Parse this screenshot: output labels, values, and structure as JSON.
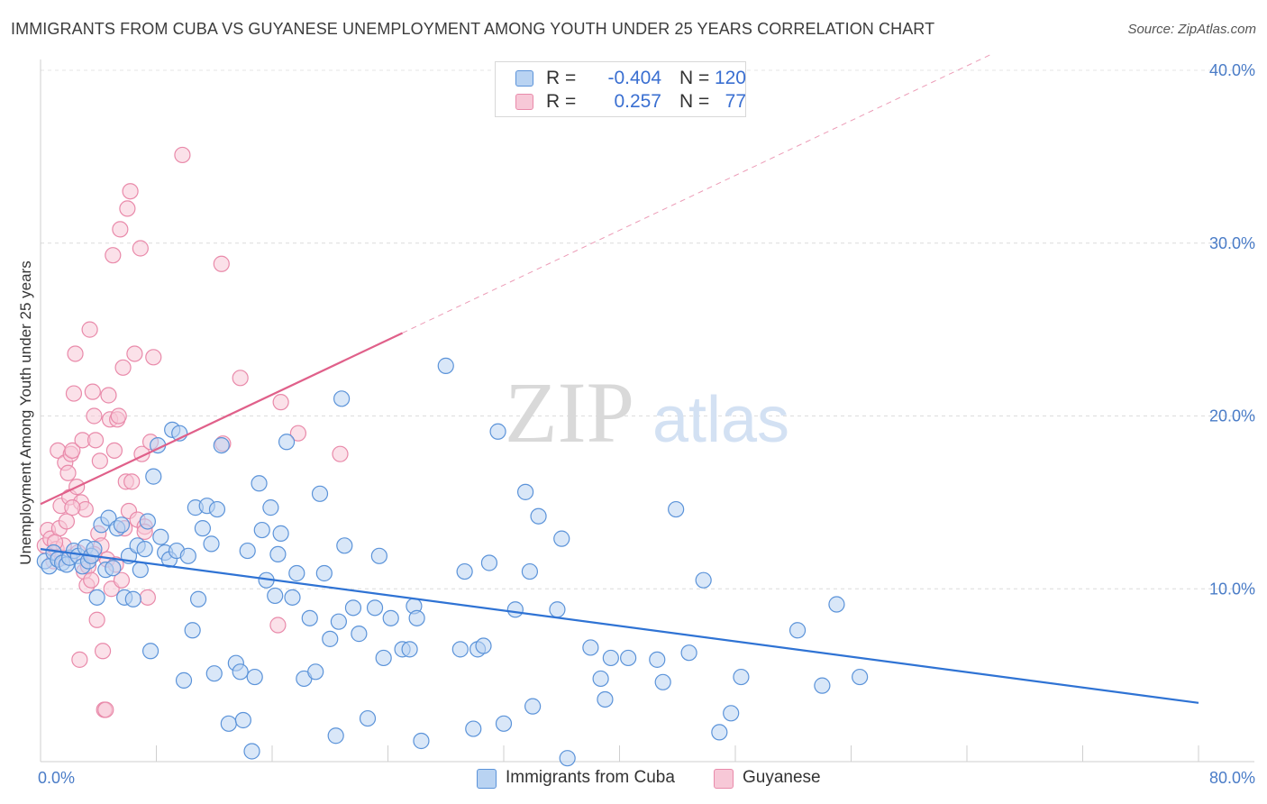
{
  "title": "IMMIGRANTS FROM CUBA VS GUYANESE UNEMPLOYMENT AMONG YOUTH UNDER 25 YEARS CORRELATION CHART",
  "source": "Source: ZipAtlas.com",
  "watermark": {
    "zip": "ZIP",
    "atlas": "atlas"
  },
  "colors": {
    "blue": "#5b93d9",
    "blue_fill": "#b9d3f2",
    "blue_line": "#2f73d4",
    "pink": "#e98aaa",
    "pink_fill": "#f7c8d7",
    "pink_line": "#e0608a",
    "tick": "#4a7cc7"
  },
  "legend": {
    "rows": [
      {
        "r_label": "R =",
        "r_value": "-0.404",
        "n_label": "N =",
        "n_value": "120"
      },
      {
        "r_label": "R =",
        "r_value": "0.257",
        "n_label": "N =",
        "n_value": "77"
      }
    ],
    "bottom": [
      "Immigrants from Cuba",
      "Guyanese"
    ]
  },
  "chart_data": {
    "type": "scatter",
    "title": "IMMIGRANTS FROM CUBA VS GUYANESE UNEMPLOYMENT AMONG YOUTH UNDER 25 YEARS CORRELATION CHART",
    "xlabel": "",
    "ylabel": "Unemployment Among Youth under 25 years",
    "xlim": [
      0,
      80
    ],
    "ylim": [
      0,
      40
    ],
    "x_tick_labels": [
      "0.0%",
      "80.0%"
    ],
    "y_ticks": [
      10,
      20,
      30,
      40
    ],
    "y_tick_labels": [
      "10.0%",
      "20.0%",
      "30.0%",
      "40.0%"
    ],
    "grid": true,
    "series": [
      {
        "name": "Immigrants from Cuba",
        "r": -0.404,
        "n": 120,
        "trend": {
          "x0": 0,
          "y0": 12.3,
          "x1": 80,
          "y1": 3.4
        },
        "points": [
          [
            0.3,
            11.6
          ],
          [
            0.6,
            11.3
          ],
          [
            0.9,
            12.1
          ],
          [
            1.2,
            11.7
          ],
          [
            1.5,
            11.5
          ],
          [
            1.8,
            11.4
          ],
          [
            2.0,
            11.8
          ],
          [
            2.3,
            12.2
          ],
          [
            2.6,
            11.9
          ],
          [
            2.9,
            11.3
          ],
          [
            3.1,
            12.4
          ],
          [
            3.3,
            11.6
          ],
          [
            3.5,
            11.9
          ],
          [
            3.7,
            12.3
          ],
          [
            3.9,
            9.5
          ],
          [
            4.2,
            13.7
          ],
          [
            4.5,
            11.1
          ],
          [
            4.7,
            14.1
          ],
          [
            5.0,
            11.2
          ],
          [
            5.3,
            13.5
          ],
          [
            5.6,
            13.7
          ],
          [
            5.8,
            9.5
          ],
          [
            6.1,
            11.9
          ],
          [
            6.4,
            9.4
          ],
          [
            6.7,
            12.5
          ],
          [
            6.9,
            11.1
          ],
          [
            7.2,
            12.3
          ],
          [
            7.4,
            13.9
          ],
          [
            7.6,
            6.4
          ],
          [
            7.8,
            16.5
          ],
          [
            8.1,
            18.3
          ],
          [
            8.3,
            13.0
          ],
          [
            8.6,
            12.1
          ],
          [
            8.9,
            11.7
          ],
          [
            9.1,
            19.2
          ],
          [
            9.4,
            12.2
          ],
          [
            9.6,
            19.0
          ],
          [
            9.9,
            4.7
          ],
          [
            10.2,
            11.9
          ],
          [
            10.5,
            7.6
          ],
          [
            10.7,
            14.7
          ],
          [
            10.9,
            9.4
          ],
          [
            11.2,
            13.5
          ],
          [
            11.5,
            14.8
          ],
          [
            11.8,
            12.6
          ],
          [
            12.0,
            5.1
          ],
          [
            12.2,
            14.6
          ],
          [
            12.5,
            18.3
          ],
          [
            13.0,
            2.2
          ],
          [
            13.5,
            5.7
          ],
          [
            13.8,
            5.2
          ],
          [
            14.0,
            2.4
          ],
          [
            14.3,
            12.2
          ],
          [
            14.6,
            0.6
          ],
          [
            14.8,
            4.9
          ],
          [
            15.1,
            16.1
          ],
          [
            15.3,
            13.4
          ],
          [
            15.6,
            10.5
          ],
          [
            15.9,
            14.7
          ],
          [
            16.2,
            9.6
          ],
          [
            16.4,
            12.0
          ],
          [
            16.6,
            13.2
          ],
          [
            17.0,
            18.5
          ],
          [
            17.4,
            9.5
          ],
          [
            17.7,
            10.9
          ],
          [
            18.2,
            4.8
          ],
          [
            18.6,
            8.3
          ],
          [
            19.0,
            5.2
          ],
          [
            19.3,
            15.5
          ],
          [
            19.6,
            10.9
          ],
          [
            20.0,
            7.1
          ],
          [
            20.4,
            1.5
          ],
          [
            20.6,
            8.1
          ],
          [
            20.8,
            21.0
          ],
          [
            21.0,
            12.5
          ],
          [
            21.6,
            8.9
          ],
          [
            22.0,
            7.4
          ],
          [
            22.6,
            2.5
          ],
          [
            23.1,
            8.9
          ],
          [
            23.4,
            11.9
          ],
          [
            23.7,
            6.0
          ],
          [
            24.2,
            8.3
          ],
          [
            25.0,
            6.5
          ],
          [
            25.5,
            6.5
          ],
          [
            25.8,
            9.0
          ],
          [
            26.0,
            8.3
          ],
          [
            26.3,
            1.2
          ],
          [
            28.0,
            22.9
          ],
          [
            29.0,
            6.5
          ],
          [
            29.3,
            11.0
          ],
          [
            29.9,
            1.9
          ],
          [
            30.2,
            6.5
          ],
          [
            30.6,
            6.7
          ],
          [
            31.0,
            11.5
          ],
          [
            31.6,
            19.1
          ],
          [
            32.0,
            2.2
          ],
          [
            32.8,
            8.8
          ],
          [
            33.5,
            15.6
          ],
          [
            33.8,
            11.0
          ],
          [
            34.0,
            3.2
          ],
          [
            34.4,
            14.2
          ],
          [
            36.0,
            12.9
          ],
          [
            35.7,
            8.8
          ],
          [
            36.4,
            0.2
          ],
          [
            38.0,
            6.6
          ],
          [
            38.7,
            4.8
          ],
          [
            39.0,
            3.6
          ],
          [
            39.4,
            6.0
          ],
          [
            40.6,
            6.0
          ],
          [
            42.6,
            5.9
          ],
          [
            43.0,
            4.6
          ],
          [
            43.9,
            14.6
          ],
          [
            44.8,
            6.3
          ],
          [
            45.8,
            10.5
          ],
          [
            46.9,
            1.7
          ],
          [
            47.7,
            2.8
          ],
          [
            48.4,
            4.9
          ],
          [
            52.3,
            7.6
          ],
          [
            54.0,
            4.4
          ],
          [
            55.0,
            9.1
          ],
          [
            56.6,
            4.9
          ]
        ]
      },
      {
        "name": "Guyanese",
        "r": 0.257,
        "n": 77,
        "trend": {
          "x0": 0,
          "y0": 14.9,
          "x1": 25,
          "y1": 24.8,
          "dashed_to": {
            "x": 80,
            "y": 46.6
          }
        },
        "points": [
          [
            0.3,
            12.5
          ],
          [
            0.5,
            13.4
          ],
          [
            0.7,
            12.9
          ],
          [
            0.9,
            11.6
          ],
          [
            1.1,
            12.3
          ],
          [
            1.2,
            18.0
          ],
          [
            1.3,
            13.5
          ],
          [
            1.4,
            14.8
          ],
          [
            1.5,
            11.8
          ],
          [
            1.6,
            12.5
          ],
          [
            1.7,
            17.3
          ],
          [
            1.8,
            13.9
          ],
          [
            1.9,
            16.7
          ],
          [
            2.0,
            15.3
          ],
          [
            2.1,
            17.8
          ],
          [
            2.2,
            18.0
          ],
          [
            2.3,
            21.3
          ],
          [
            2.4,
            23.6
          ],
          [
            2.5,
            15.9
          ],
          [
            2.6,
            12.1
          ],
          [
            2.7,
            5.9
          ],
          [
            2.8,
            15.0
          ],
          [
            2.9,
            18.6
          ],
          [
            3.0,
            11.0
          ],
          [
            3.1,
            14.6
          ],
          [
            3.2,
            10.2
          ],
          [
            3.3,
            11.3
          ],
          [
            3.4,
            25.0
          ],
          [
            3.5,
            10.5
          ],
          [
            3.6,
            21.4
          ],
          [
            3.7,
            20.0
          ],
          [
            3.8,
            18.6
          ],
          [
            3.9,
            8.2
          ],
          [
            4.0,
            13.2
          ],
          [
            4.1,
            17.4
          ],
          [
            4.2,
            12.5
          ],
          [
            4.3,
            6.4
          ],
          [
            4.4,
            3.0
          ],
          [
            4.5,
            3.0
          ],
          [
            4.6,
            11.7
          ],
          [
            4.7,
            21.2
          ],
          [
            4.8,
            19.8
          ],
          [
            4.9,
            10.0
          ],
          [
            5.0,
            29.3
          ],
          [
            5.1,
            18.0
          ],
          [
            5.2,
            11.4
          ],
          [
            5.3,
            19.8
          ],
          [
            5.4,
            20.0
          ],
          [
            5.5,
            30.8
          ],
          [
            5.6,
            10.5
          ],
          [
            5.7,
            22.8
          ],
          [
            5.8,
            13.5
          ],
          [
            5.9,
            16.2
          ],
          [
            6.0,
            32.0
          ],
          [
            6.1,
            14.5
          ],
          [
            6.2,
            33.0
          ],
          [
            6.3,
            16.2
          ],
          [
            6.5,
            23.6
          ],
          [
            6.7,
            14.0
          ],
          [
            6.9,
            29.7
          ],
          [
            7.0,
            17.8
          ],
          [
            7.2,
            13.6
          ],
          [
            7.4,
            9.5
          ],
          [
            7.6,
            18.5
          ],
          [
            7.8,
            23.4
          ],
          [
            9.8,
            35.1
          ],
          [
            12.5,
            28.8
          ],
          [
            12.6,
            18.4
          ],
          [
            13.8,
            22.2
          ],
          [
            16.4,
            7.9
          ],
          [
            16.6,
            20.8
          ],
          [
            17.8,
            19.0
          ],
          [
            20.7,
            17.8
          ],
          [
            7.2,
            13.3
          ],
          [
            3.7,
            12.0
          ],
          [
            2.2,
            14.7
          ],
          [
            1.0,
            12.7
          ]
        ]
      }
    ]
  }
}
